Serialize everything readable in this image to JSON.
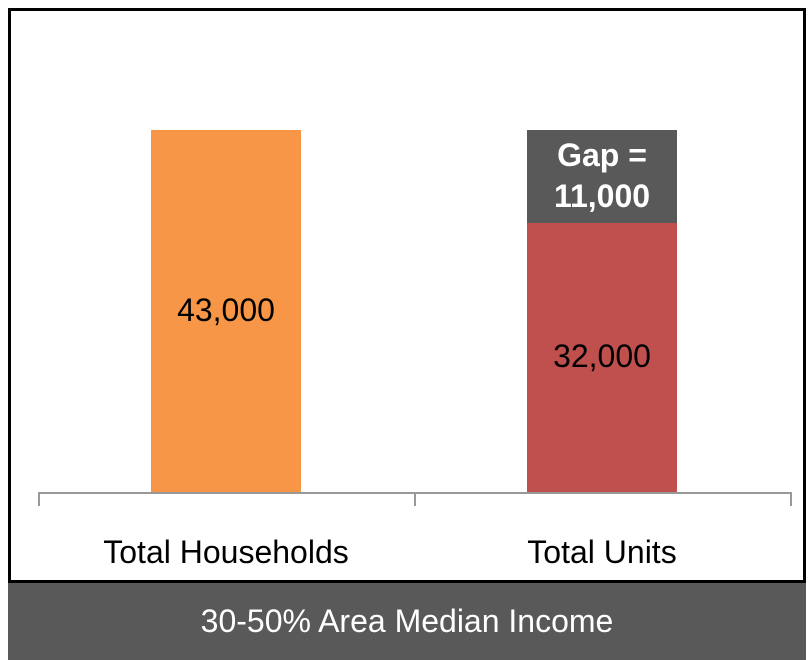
{
  "chart_data": {
    "type": "stacked_bar",
    "categories": [
      "Total Households",
      "Total Units"
    ],
    "series": [
      {
        "color": "#f79646",
        "values": [
          43000,
          null
        ],
        "value_labels": [
          "43,000",
          null
        ],
        "label_color": "#000000",
        "label_bold": false
      },
      {
        "color": "#c0504d",
        "values": [
          null,
          32000
        ],
        "value_labels": [
          null,
          "32,000"
        ],
        "label_color": "#000000",
        "label_bold": false
      },
      {
        "color": "#595959",
        "values": [
          null,
          11000
        ],
        "value_labels": [
          null,
          "Gap = 11,000"
        ],
        "label_color": "#ffffff",
        "label_bold": true
      }
    ],
    "footer": "30-50% Area Median Income"
  }
}
